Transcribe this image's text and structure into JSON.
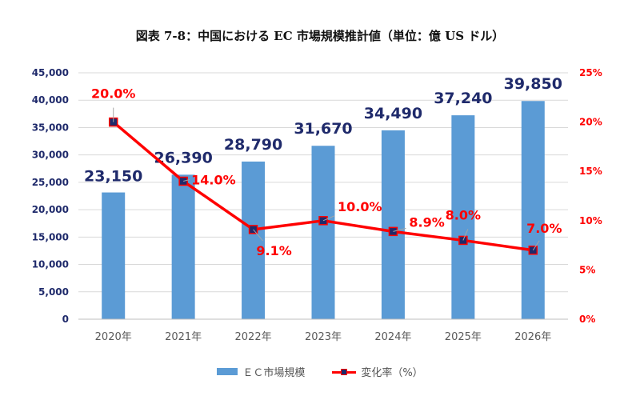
{
  "title": "図表 7-8：中国における EC 市場規模推計値（単位：億 US ドル）",
  "chart_data": {
    "type": "bar",
    "categories": [
      "2020年",
      "2021年",
      "2022年",
      "2023年",
      "2024年",
      "2025年",
      "2026年"
    ],
    "series": [
      {
        "name": "ＥＣ市場規模",
        "type": "bar",
        "axis": "left",
        "values": [
          23150,
          26390,
          28790,
          31670,
          34490,
          37240,
          39850
        ],
        "labels": [
          "23,150",
          "26,390",
          "28,790",
          "31,670",
          "34,490",
          "37,240",
          "39,850"
        ],
        "color": "#5b9bd5"
      },
      {
        "name": "変化率（%）",
        "type": "line",
        "axis": "right",
        "values": [
          20.0,
          14.0,
          9.1,
          10.0,
          8.9,
          8.0,
          7.0
        ],
        "labels": [
          "20.0%",
          "14.0%",
          "9.1%",
          "10.0%",
          "8.9%",
          "8.0%",
          "7.0%"
        ],
        "color": "#ff0000",
        "marker_color": "#1f2a6b"
      }
    ],
    "y_left": {
      "range": [
        0,
        45000
      ],
      "ticks": [
        0,
        5000,
        10000,
        15000,
        20000,
        25000,
        30000,
        35000,
        40000,
        45000
      ],
      "tick_labels": [
        "0",
        "5,000",
        "10,000",
        "15,000",
        "20,000",
        "25,000",
        "30,000",
        "35,000",
        "40,000",
        "45,000"
      ],
      "color": "#1f2a6b"
    },
    "y_right": {
      "range": [
        0,
        25
      ],
      "ticks": [
        0,
        5,
        10,
        15,
        20,
        25
      ],
      "tick_labels": [
        "0%",
        "5%",
        "10%",
        "15%",
        "20%",
        "25%"
      ],
      "color": "#ff0000"
    },
    "grid": true,
    "legend_position": "bottom",
    "bar_label_color": "#1f2a6b"
  }
}
